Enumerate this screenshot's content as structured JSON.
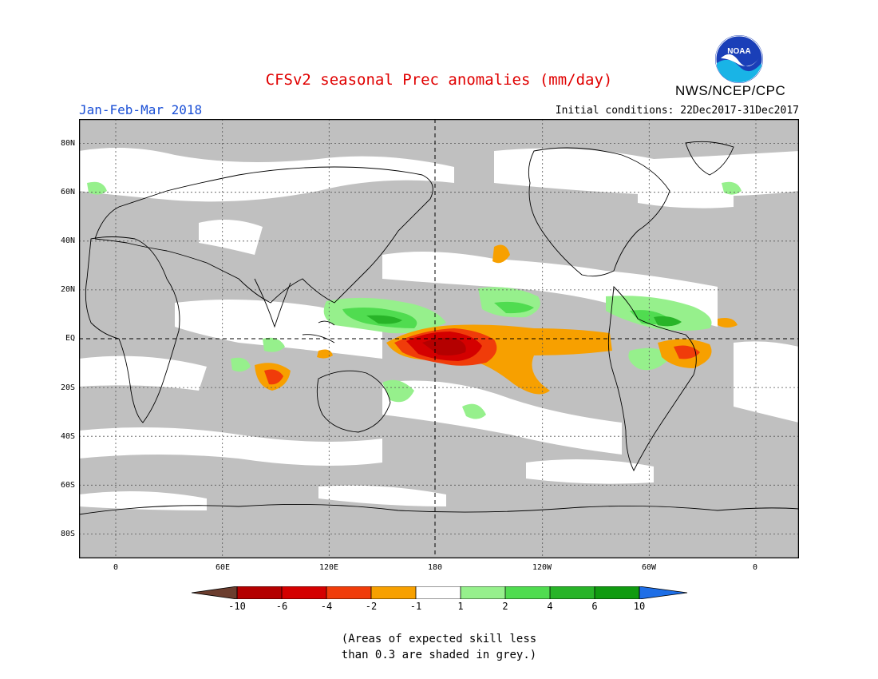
{
  "title": "CFSv2 seasonal Prec anomalies (mm/day)",
  "organization": "NWS/NCEP/CPC",
  "logo_text": "NOAA",
  "season": "Jan-Feb-Mar 2018",
  "initial_conditions": "Initial conditions: 22Dec2017-31Dec2017",
  "latitude_labels": [
    "80N",
    "60N",
    "40N",
    "20N",
    "EQ",
    "20S",
    "40S",
    "60S",
    "80S"
  ],
  "longitude_labels": [
    "0",
    "60E",
    "120E",
    "180",
    "120W",
    "60W",
    "0"
  ],
  "colorbar": {
    "labels": [
      "-10",
      "-6",
      "-4",
      "-2",
      "-1",
      "1",
      "2",
      "4",
      "6",
      "10"
    ],
    "colors": [
      "#6b3d2e",
      "#b40000",
      "#d40000",
      "#f03c0a",
      "#f7a000",
      "#ffffff",
      "#96f08c",
      "#50dc50",
      "#28b428",
      "#109b10",
      "#1e6ee6"
    ]
  },
  "note_line1": "(Areas of expected skill less",
  "note_line2": "than 0.3 are shaded in grey.)",
  "colors": {
    "grey": "#c0c0c0",
    "title_red": "#e00000",
    "season_blue": "#1a4fd6"
  }
}
